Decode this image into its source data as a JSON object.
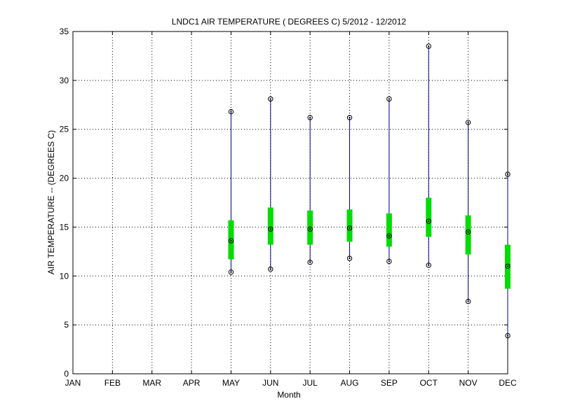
{
  "chart_data": {
    "type": "box",
    "title": "LNDC1  AIR TEMPERATURE ( DEGREES C) 5/2012 - 12/2012",
    "xlabel": "Month",
    "ylabel": "AIR TEMPERATURE -- (DEGREES C)",
    "categories": [
      "JAN",
      "FEB",
      "MAR",
      "APR",
      "MAY",
      "JUN",
      "JUL",
      "AUG",
      "SEP",
      "OCT",
      "NOV",
      "DEC"
    ],
    "ylim": [
      0,
      35
    ],
    "yticks": [
      0,
      5,
      10,
      15,
      20,
      25,
      30,
      35
    ],
    "grid": true,
    "series": [
      {
        "month": "MAY",
        "min": 10.4,
        "q1": 11.7,
        "median": 13.6,
        "q3": 15.7,
        "max": 26.8
      },
      {
        "month": "JUN",
        "min": 10.7,
        "q1": 13.2,
        "median": 14.8,
        "q3": 17.0,
        "max": 28.1
      },
      {
        "month": "JUL",
        "min": 11.4,
        "q1": 13.2,
        "median": 14.8,
        "q3": 16.7,
        "max": 26.2
      },
      {
        "month": "AUG",
        "min": 11.8,
        "q1": 13.5,
        "median": 14.9,
        "q3": 16.8,
        "max": 26.2
      },
      {
        "month": "SEP",
        "min": 11.5,
        "q1": 13.0,
        "median": 14.1,
        "q3": 16.4,
        "max": 28.1
      },
      {
        "month": "OCT",
        "min": 11.1,
        "q1": 14.0,
        "median": 15.6,
        "q3": 18.0,
        "max": 33.5
      },
      {
        "month": "NOV",
        "min": 7.4,
        "q1": 12.2,
        "median": 14.5,
        "q3": 16.2,
        "max": 25.7
      },
      {
        "month": "DEC",
        "min": 3.9,
        "q1": 8.7,
        "median": 11.0,
        "q3": 13.2,
        "max": 20.4
      }
    ],
    "colors": {
      "whisker": "#00008b",
      "box": "#00dd00",
      "marker": "#000000",
      "grid": "#000000"
    }
  }
}
